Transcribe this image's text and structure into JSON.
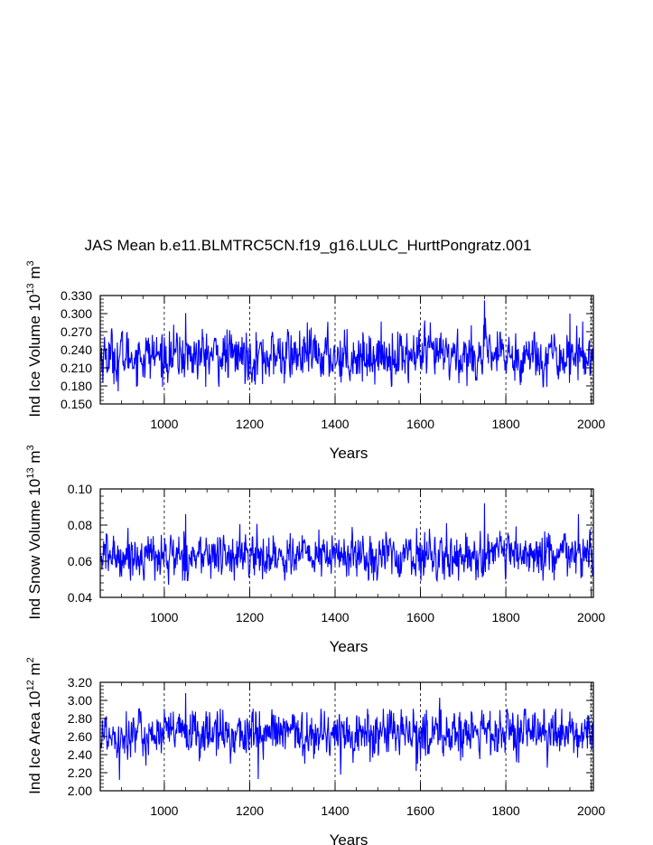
{
  "title": "JAS Mean b.e11.BLMTRC5CN.f19_g16.LULC_HurttPongratz.001",
  "colors": {
    "series": "#0000ff",
    "axes": "#000000",
    "grid": "#000000"
  },
  "chart_data": [
    {
      "type": "line",
      "title": "JAS Mean b.e11.BLMTRC5CN.f19_g16.LULC_HurttPongratz.001",
      "xlabel": "Years",
      "ylabel": {
        "prefix": "Ind Ice Volume 10",
        "exp": "13",
        "unit": " m",
        "unit_exp": "3"
      },
      "xlim": [
        850,
        2005
      ],
      "ylim": [
        0.15,
        0.33
      ],
      "x_ticks": [
        "1000",
        "1200",
        "1400",
        "1600",
        "1800",
        "2000"
      ],
      "y_ticks": [
        "0.150",
        "0.180",
        "0.210",
        "0.240",
        "0.270",
        "0.300",
        "0.330"
      ],
      "grid": "dashed vertical lines at major x ticks",
      "series_summary": {
        "x_start": 850,
        "x_end": 2005,
        "mean": 0.23,
        "amplitude": 0.022,
        "min": 0.171,
        "max": 0.322
      },
      "notable_points": [
        [
          892,
          0.171
        ],
        [
          1050,
          0.301
        ],
        [
          1230,
          0.183
        ],
        [
          1750,
          0.322
        ],
        [
          1950,
          0.3
        ]
      ]
    },
    {
      "type": "line",
      "xlabel": "Years",
      "ylabel": {
        "prefix": "Ind Snow Volume 10",
        "exp": "13",
        "unit": " m",
        "unit_exp": "3"
      },
      "xlim": [
        850,
        2005
      ],
      "ylim": [
        0.04,
        0.1
      ],
      "x_ticks": [
        "1000",
        "1200",
        "1400",
        "1600",
        "1800",
        "2000"
      ],
      "y_ticks": [
        "0.04",
        "0.06",
        "0.08",
        "0.10"
      ],
      "grid": "dashed vertical lines at major x ticks",
      "series_summary": {
        "x_start": 850,
        "x_end": 2005,
        "mean": 0.063,
        "amplitude": 0.0065,
        "min": 0.047,
        "max": 0.092
      },
      "notable_points": [
        [
          1010,
          0.047
        ],
        [
          1050,
          0.086
        ],
        [
          1230,
          0.05
        ],
        [
          1750,
          0.092
        ],
        [
          1970,
          0.086
        ]
      ]
    },
    {
      "type": "line",
      "xlabel": "Years",
      "ylabel": {
        "prefix": "Ind Ice Area 10",
        "exp": "12",
        "unit": " m",
        "unit_exp": "2"
      },
      "xlim": [
        850,
        2005
      ],
      "ylim": [
        2.0,
        3.2
      ],
      "x_ticks": [
        "1000",
        "1200",
        "1400",
        "1600",
        "1800",
        "2000"
      ],
      "y_ticks": [
        "2.00",
        "2.20",
        "2.40",
        "2.60",
        "2.80",
        "3.00",
        "3.20"
      ],
      "grid": "dashed vertical lines at major x ticks",
      "series_summary": {
        "x_start": 850,
        "x_end": 2005,
        "mean": 2.63,
        "amplitude": 0.14,
        "min": 2.12,
        "max": 3.08
      },
      "notable_points": [
        [
          895,
          2.12
        ],
        [
          1050,
          3.08
        ],
        [
          1220,
          2.13
        ],
        [
          1590,
          2.22
        ],
        [
          1645,
          3.03
        ]
      ]
    }
  ]
}
